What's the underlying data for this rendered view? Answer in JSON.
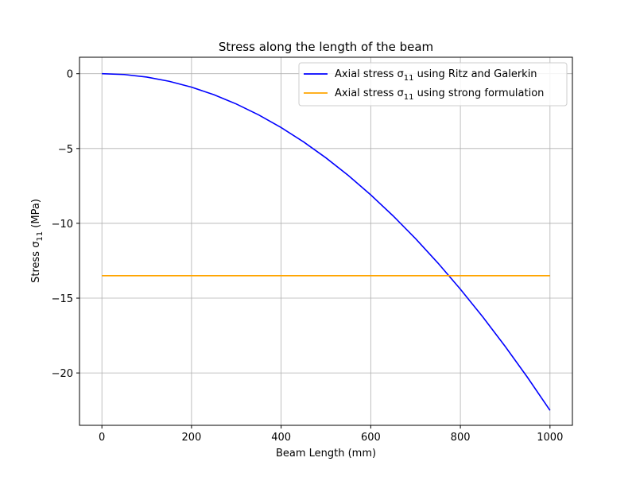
{
  "chart_data": {
    "type": "line",
    "title": "Stress along the length of the beam",
    "xlabel": "Beam Length (mm)",
    "ylabel_prefix": "Stress σ",
    "ylabel_sub": "11",
    "ylabel_suffix": " (MPa)",
    "xlim": [
      -50,
      1050
    ],
    "ylim": [
      -23.5,
      1.1
    ],
    "xticks": [
      0,
      200,
      400,
      600,
      800,
      1000
    ],
    "xtick_labels": [
      "0",
      "200",
      "400",
      "600",
      "800",
      "1000"
    ],
    "yticks": [
      0,
      -5,
      -10,
      -15,
      -20
    ],
    "ytick_labels": [
      "0",
      "−5",
      "−10",
      "−15",
      "−20"
    ],
    "grid": true,
    "legend_position": "top-right",
    "series": [
      {
        "name_prefix": "Axial stress σ",
        "name_sub": "11",
        "name_suffix": "  using Ritz and Galerkin",
        "color": "#0000ff",
        "x": [
          0,
          50,
          100,
          150,
          200,
          250,
          300,
          350,
          400,
          450,
          500,
          550,
          600,
          650,
          700,
          750,
          800,
          850,
          900,
          950,
          1000
        ],
        "y": [
          0,
          -0.056,
          -0.225,
          -0.506,
          -0.9,
          -1.406,
          -2.025,
          -2.756,
          -3.6,
          -4.556,
          -5.625,
          -6.806,
          -8.1,
          -9.506,
          -11.025,
          -12.656,
          -14.4,
          -16.256,
          -18.225,
          -20.306,
          -22.5
        ]
      },
      {
        "name_prefix": "Axial stress σ",
        "name_sub": "11",
        "name_suffix": "  using strong formulation",
        "color": "#ffa500",
        "x": [
          0,
          1000
        ],
        "y": [
          -13.5,
          -13.5
        ]
      }
    ]
  }
}
